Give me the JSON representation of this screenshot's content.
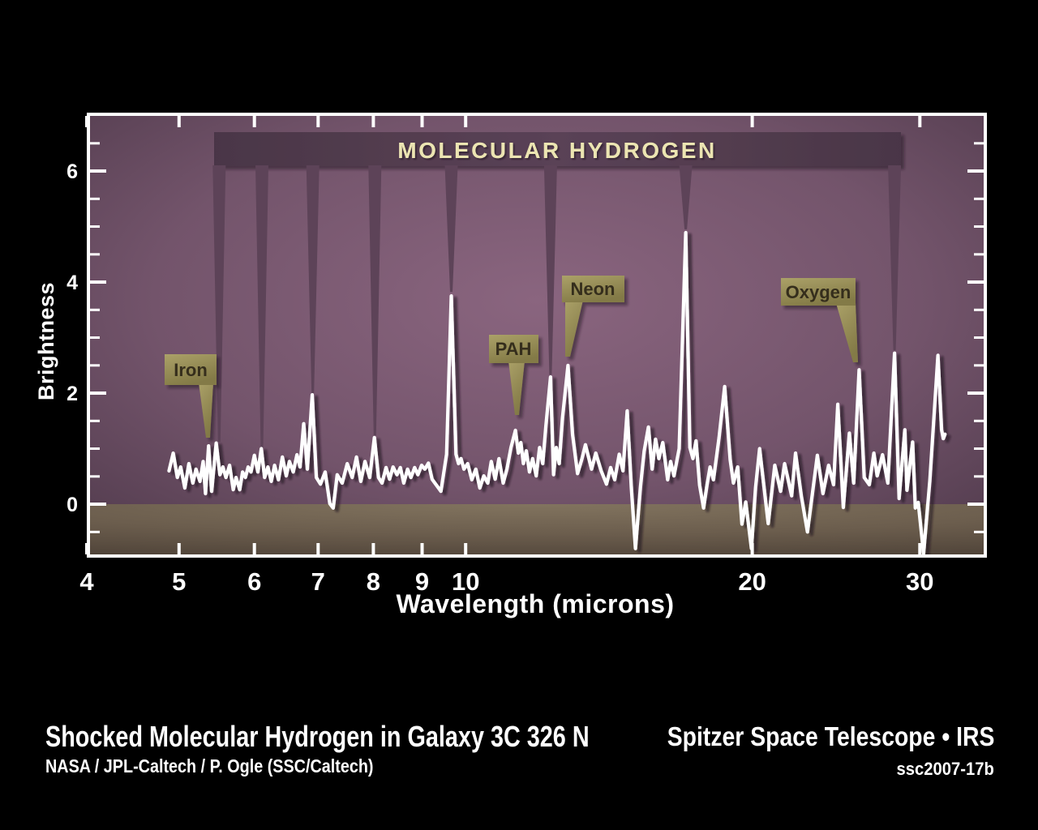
{
  "figure": {
    "banner_label": "MOLECULAR HYDROGEN",
    "xlabel": "Wavelength (microns)",
    "ylabel": "Brightness"
  },
  "annotations": [
    {
      "label": "Iron",
      "wavelength": 5.34
    },
    {
      "label": "PAH",
      "wavelength": 11.3
    },
    {
      "label": "Neon",
      "wavelength": 12.8
    },
    {
      "label": "Oxygen",
      "wavelength": 25.9
    }
  ],
  "h2_markers": {
    "wavelengths": [
      5.51,
      6.11,
      6.91,
      8.03,
      9.66,
      12.28,
      17.03,
      28.22
    ],
    "tip_brightness": [
      1.12,
      1.02,
      2.0,
      1.24,
      3.82,
      2.33,
      4.95,
      2.77
    ]
  },
  "captions": {
    "title": "Shocked Molecular Hydrogen in Galaxy 3C 326 N",
    "credit": "NASA / JPL-Caltech / P. Ogle (SSC/Caltech)",
    "right_title": "Spitzer Space Telescope • IRS",
    "right_id": "ssc2007-17b"
  },
  "colors": {
    "background": "#000000",
    "plot_purple_center": "#8a657f",
    "plot_purple_edge": "#4d3849",
    "baseline_band_brown": "#6b5d4d",
    "h2_band": "#543d51",
    "banner_text": "#ece5b2",
    "annotation_box": "#958b55",
    "annotation_text": "#362e1d",
    "spectrum_line": "#ffffff"
  },
  "chart_data": {
    "type": "line",
    "title": "Shocked Molecular Hydrogen in Galaxy 3C 326 N",
    "xlabel": "Wavelength (microns)",
    "ylabel": "Brightness",
    "xscale": "log",
    "xlim": [
      4,
      35.3
    ],
    "ylim": [
      -0.92,
      7.05
    ],
    "x_ticks": [
      4,
      5,
      6,
      7,
      8,
      9,
      10,
      20,
      30
    ],
    "y_ticks": [
      0,
      2,
      4,
      6
    ],
    "y_minor_tick_step": 0.5,
    "grid": false,
    "legend": false,
    "lines": {
      "molecular_hydrogen": [
        5.51,
        6.11,
        6.91,
        8.03,
        9.66,
        12.28,
        17.03,
        28.22
      ],
      "iron": 5.34,
      "pah": 11.3,
      "neon": 12.8,
      "oxygen": 25.9
    },
    "series": [
      {
        "name": "3C 326 N infrared spectrum",
        "points": [
          [
            4.88,
            0.6
          ],
          [
            4.93,
            0.92
          ],
          [
            4.98,
            0.48
          ],
          [
            5.02,
            0.67
          ],
          [
            5.07,
            0.29
          ],
          [
            5.12,
            0.73
          ],
          [
            5.17,
            0.38
          ],
          [
            5.21,
            0.63
          ],
          [
            5.26,
            0.41
          ],
          [
            5.3,
            0.77
          ],
          [
            5.33,
            0.19
          ],
          [
            5.37,
            1.05
          ],
          [
            5.41,
            0.23
          ],
          [
            5.47,
            1.1
          ],
          [
            5.52,
            0.53
          ],
          [
            5.56,
            0.67
          ],
          [
            5.6,
            0.48
          ],
          [
            5.65,
            0.7
          ],
          [
            5.7,
            0.26
          ],
          [
            5.74,
            0.48
          ],
          [
            5.79,
            0.26
          ],
          [
            5.83,
            0.58
          ],
          [
            5.87,
            0.48
          ],
          [
            5.91,
            0.67
          ],
          [
            5.95,
            0.58
          ],
          [
            6.0,
            0.88
          ],
          [
            6.05,
            0.58
          ],
          [
            6.1,
            1.0
          ],
          [
            6.15,
            0.48
          ],
          [
            6.2,
            0.67
          ],
          [
            6.25,
            0.41
          ],
          [
            6.3,
            0.7
          ],
          [
            6.36,
            0.44
          ],
          [
            6.42,
            0.85
          ],
          [
            6.48,
            0.51
          ],
          [
            6.53,
            0.77
          ],
          [
            6.59,
            0.58
          ],
          [
            6.65,
            0.89
          ],
          [
            6.7,
            0.67
          ],
          [
            6.76,
            1.45
          ],
          [
            6.82,
            0.63
          ],
          [
            6.9,
            1.97
          ],
          [
            6.97,
            0.48
          ],
          [
            7.04,
            0.36
          ],
          [
            7.12,
            0.58
          ],
          [
            7.2,
            0.01
          ],
          [
            7.26,
            -0.07
          ],
          [
            7.33,
            0.53
          ],
          [
            7.42,
            0.38
          ],
          [
            7.51,
            0.73
          ],
          [
            7.6,
            0.48
          ],
          [
            7.68,
            0.85
          ],
          [
            7.76,
            0.41
          ],
          [
            7.84,
            0.77
          ],
          [
            7.93,
            0.48
          ],
          [
            8.02,
            1.2
          ],
          [
            8.1,
            0.48
          ],
          [
            8.17,
            0.38
          ],
          [
            8.25,
            0.66
          ],
          [
            8.32,
            0.45
          ],
          [
            8.39,
            0.67
          ],
          [
            8.47,
            0.53
          ],
          [
            8.54,
            0.66
          ],
          [
            8.61,
            0.38
          ],
          [
            8.69,
            0.63
          ],
          [
            8.76,
            0.48
          ],
          [
            8.84,
            0.66
          ],
          [
            8.91,
            0.53
          ],
          [
            8.99,
            0.7
          ],
          [
            9.06,
            0.63
          ],
          [
            9.14,
            0.74
          ],
          [
            9.22,
            0.45
          ],
          [
            9.32,
            0.34
          ],
          [
            9.42,
            0.23
          ],
          [
            9.55,
            0.9
          ],
          [
            9.66,
            3.75
          ],
          [
            9.77,
            0.9
          ],
          [
            9.83,
            0.73
          ],
          [
            9.89,
            0.82
          ],
          [
            9.96,
            0.63
          ],
          [
            10.05,
            0.73
          ],
          [
            10.15,
            0.44
          ],
          [
            10.25,
            0.63
          ],
          [
            10.35,
            0.29
          ],
          [
            10.45,
            0.51
          ],
          [
            10.55,
            0.38
          ],
          [
            10.64,
            0.77
          ],
          [
            10.74,
            0.45
          ],
          [
            10.84,
            0.82
          ],
          [
            10.95,
            0.38
          ],
          [
            11.05,
            0.63
          ],
          [
            11.16,
            1.02
          ],
          [
            11.28,
            1.33
          ],
          [
            11.36,
            0.92
          ],
          [
            11.43,
            1.11
          ],
          [
            11.5,
            0.73
          ],
          [
            11.58,
            0.96
          ],
          [
            11.67,
            0.58
          ],
          [
            11.76,
            0.82
          ],
          [
            11.86,
            0.51
          ],
          [
            11.96,
            1.02
          ],
          [
            12.05,
            0.73
          ],
          [
            12.14,
            1.4
          ],
          [
            12.28,
            2.29
          ],
          [
            12.37,
            0.53
          ],
          [
            12.45,
            1.02
          ],
          [
            12.54,
            0.73
          ],
          [
            12.64,
            1.55
          ],
          [
            12.81,
            2.5
          ],
          [
            12.95,
            1.26
          ],
          [
            13.11,
            0.55
          ],
          [
            13.24,
            0.8
          ],
          [
            13.36,
            1.07
          ],
          [
            13.56,
            0.63
          ],
          [
            13.7,
            0.92
          ],
          [
            13.88,
            0.6
          ],
          [
            14.06,
            0.36
          ],
          [
            14.2,
            0.66
          ],
          [
            14.34,
            0.44
          ],
          [
            14.5,
            0.9
          ],
          [
            14.63,
            0.6
          ],
          [
            14.78,
            1.68
          ],
          [
            14.93,
            0.3
          ],
          [
            15.08,
            -0.8
          ],
          [
            15.26,
            0.3
          ],
          [
            15.4,
            0.95
          ],
          [
            15.56,
            1.39
          ],
          [
            15.7,
            0.63
          ],
          [
            15.83,
            1.17
          ],
          [
            15.96,
            0.82
          ],
          [
            16.11,
            1.11
          ],
          [
            16.3,
            0.44
          ],
          [
            16.42,
            0.77
          ],
          [
            16.55,
            0.51
          ],
          [
            16.76,
            1.0
          ],
          [
            17.03,
            4.89
          ],
          [
            17.2,
            1.02
          ],
          [
            17.33,
            0.82
          ],
          [
            17.46,
            1.14
          ],
          [
            17.61,
            0.34
          ],
          [
            17.78,
            -0.07
          ],
          [
            17.93,
            0.35
          ],
          [
            18.06,
            0.67
          ],
          [
            18.21,
            0.44
          ],
          [
            18.46,
            1.2
          ],
          [
            18.71,
            2.12
          ],
          [
            18.96,
            0.8
          ],
          [
            19.11,
            0.38
          ],
          [
            19.31,
            0.67
          ],
          [
            19.51,
            -0.36
          ],
          [
            19.69,
            0.04
          ],
          [
            19.96,
            -0.8
          ],
          [
            20.16,
            0.3
          ],
          [
            20.36,
            1.0
          ],
          [
            20.79,
            -0.35
          ],
          [
            21.12,
            0.7
          ],
          [
            21.42,
            0.23
          ],
          [
            21.63,
            0.73
          ],
          [
            22.0,
            0.15
          ],
          [
            22.21,
            0.92
          ],
          [
            22.52,
            0.15
          ],
          [
            22.86,
            -0.5
          ],
          [
            23.41,
            0.88
          ],
          [
            23.73,
            0.19
          ],
          [
            24.06,
            0.7
          ],
          [
            24.35,
            0.35
          ],
          [
            24.6,
            1.8
          ],
          [
            24.93,
            -0.06
          ],
          [
            25.3,
            1.28
          ],
          [
            25.56,
            0.38
          ],
          [
            25.9,
            2.42
          ],
          [
            26.22,
            0.48
          ],
          [
            26.55,
            0.35
          ],
          [
            26.84,
            0.92
          ],
          [
            27.06,
            0.51
          ],
          [
            27.41,
            0.89
          ],
          [
            27.76,
            0.38
          ],
          [
            28.22,
            2.72
          ],
          [
            28.53,
            0.1
          ],
          [
            28.93,
            1.34
          ],
          [
            29.08,
            0.25
          ],
          [
            29.48,
            1.12
          ],
          [
            29.67,
            -0.07
          ],
          [
            29.88,
            0.03
          ],
          [
            30.27,
            -0.89
          ],
          [
            30.73,
            0.42
          ],
          [
            31.34,
            2.68
          ],
          [
            31.62,
            1.34
          ],
          [
            31.75,
            1.18
          ],
          [
            31.88,
            1.26
          ]
        ]
      }
    ]
  }
}
